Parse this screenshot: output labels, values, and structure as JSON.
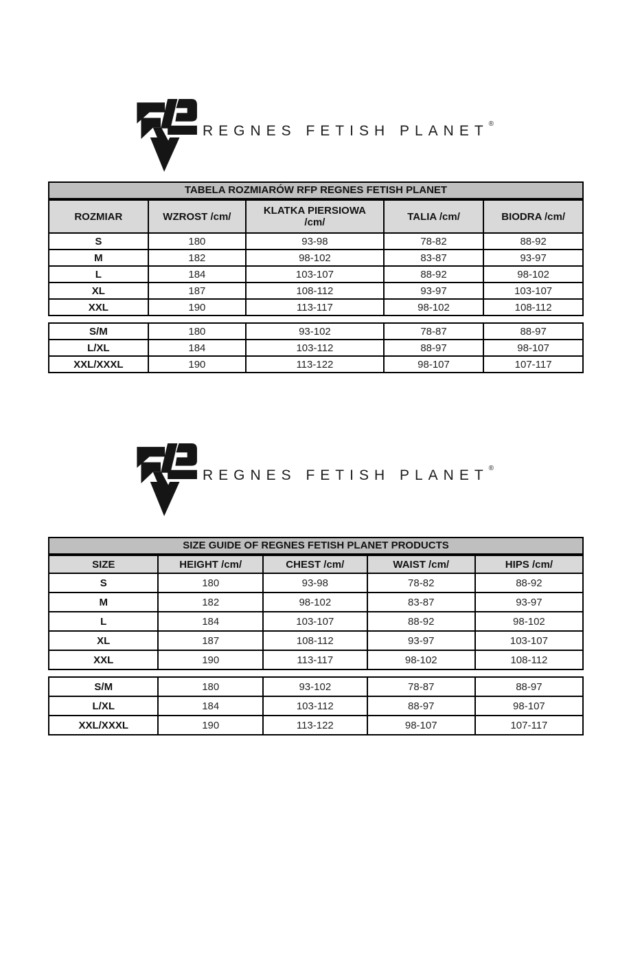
{
  "logo": {
    "brand_text": "REGNES FETISH PLANET",
    "registered_mark": "®"
  },
  "colors": {
    "title_row_bg": "#bfbfbf",
    "header_row_bg": "#d9d9d9",
    "border": "#000000",
    "logo_color": "#151515"
  },
  "tables": [
    {
      "title": "TABELA ROZMIARÓW RFP REGNES FETISH PLANET",
      "columns": [
        "ROZMIAR",
        "WZROST /cm/",
        "KLATKA PIERSIOWA\n/cm/",
        "TALIA /cm/",
        "BIODRA /cm/"
      ],
      "blocks": [
        {
          "rows": [
            [
              "S",
              "180",
              "93-98",
              "78-82",
              "88-92"
            ],
            [
              "M",
              "182",
              "98-102",
              "83-87",
              "93-97"
            ],
            [
              "L",
              "184",
              "103-107",
              "88-92",
              "98-102"
            ],
            [
              "XL",
              "187",
              "108-112",
              "93-97",
              "103-107"
            ],
            [
              "XXL",
              "190",
              "113-117",
              "98-102",
              "108-112"
            ]
          ]
        },
        {
          "rows": [
            [
              "S/M",
              "180",
              "93-102",
              "78-87",
              "88-97"
            ],
            [
              "L/XL",
              "184",
              "103-112",
              "88-97",
              "98-107"
            ],
            [
              "XXL/XXXL",
              "190",
              "113-122",
              "98-107",
              "107-117"
            ]
          ]
        }
      ]
    },
    {
      "title": "SIZE GUIDE OF REGNES FETISH PLANET PRODUCTS",
      "columns": [
        "SIZE",
        "HEIGHT /cm/",
        "CHEST /cm/",
        "WAIST /cm/",
        "HIPS /cm/"
      ],
      "blocks": [
        {
          "rows": [
            [
              "S",
              "180",
              "93-98",
              "78-82",
              "88-92"
            ],
            [
              "M",
              "182",
              "98-102",
              "83-87",
              "93-97"
            ],
            [
              "L",
              "184",
              "103-107",
              "88-92",
              "98-102"
            ],
            [
              "XL",
              "187",
              "108-112",
              "93-97",
              "103-107"
            ],
            [
              "XXL",
              "190",
              "113-117",
              "98-102",
              "108-112"
            ]
          ]
        },
        {
          "rows": [
            [
              "S/M",
              "180",
              "93-102",
              "78-87",
              "88-97"
            ],
            [
              "L/XL",
              "184",
              "103-112",
              "88-97",
              "98-107"
            ],
            [
              "XXL/XXXL",
              "190",
              "113-122",
              "98-107",
              "107-117"
            ]
          ]
        }
      ]
    }
  ]
}
